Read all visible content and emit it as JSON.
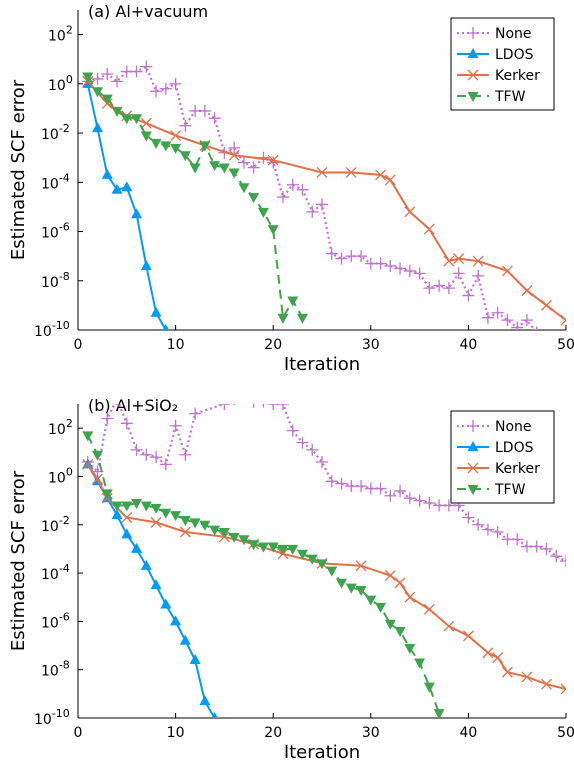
{
  "chart_data": [
    {
      "type": "line",
      "title": "(a) Al+vacuum",
      "xlabel": "Iteration",
      "ylabel": "Estimated SCF error",
      "xlim": [
        0,
        50
      ],
      "ylim_log10": [
        -10,
        3
      ],
      "yscale": "log",
      "x_ticks": [
        "0",
        "10",
        "20",
        "30",
        "40",
        "50"
      ],
      "y_ticks": [
        {
          "base": "10",
          "exp": "2"
        },
        {
          "base": "10",
          "exp": "0"
        },
        {
          "base": "10",
          "exp": "-2"
        },
        {
          "base": "10",
          "exp": "-4"
        },
        {
          "base": "10",
          "exp": "-6"
        },
        {
          "base": "10",
          "exp": "-8"
        },
        {
          "base": "10",
          "exp": "-10"
        }
      ],
      "legend_position": "top-right",
      "series": [
        {
          "name": "None",
          "color": "#c271d2",
          "style": "dotted",
          "marker": "plus",
          "x": [
            1,
            2,
            3,
            4,
            5,
            6,
            7,
            8,
            9,
            10,
            11,
            12,
            13,
            14,
            15,
            16,
            17,
            18,
            19,
            20,
            21,
            22,
            23,
            24,
            25,
            26,
            27,
            28,
            29,
            30,
            31,
            32,
            33,
            34,
            35,
            36,
            37,
            38,
            39,
            40,
            41,
            42,
            43,
            44,
            45,
            46,
            47,
            48
          ],
          "log10_y": [
            0.1,
            0.2,
            0.4,
            0.1,
            0.5,
            0.5,
            0.7,
            -0.3,
            -0.2,
            0.0,
            -1.7,
            -1.1,
            -1.1,
            -1.4,
            -2.8,
            -2.6,
            -3.2,
            -3.4,
            -3.0,
            -3.2,
            -4.6,
            -4.1,
            -4.3,
            -5.2,
            -4.9,
            -6.9,
            -7.1,
            -7.0,
            -7.0,
            -7.3,
            -7.3,
            -7.4,
            -7.5,
            -7.6,
            -7.7,
            -8.3,
            -8.2,
            -8.3,
            -7.7,
            -8.6,
            -7.8,
            -9.5,
            -9.3,
            -9.6,
            -9.9,
            -9.6,
            -10.1,
            -10.4
          ]
        },
        {
          "name": "LDOS",
          "color": "#009af9",
          "style": "solid",
          "marker": "triangle-up",
          "x": [
            1,
            2,
            3,
            4,
            5,
            6,
            7,
            8,
            9
          ],
          "log10_y": [
            0.0,
            -1.8,
            -3.7,
            -4.3,
            -4.2,
            -5.3,
            -7.4,
            -9.3,
            -10.0
          ]
        },
        {
          "name": "Kerker",
          "color": "#e26f46",
          "style": "solid",
          "marker": "x",
          "x": [
            1,
            3,
            5,
            7,
            10,
            13,
            16,
            20,
            25,
            28,
            31,
            32,
            34,
            36,
            38,
            39,
            41,
            44,
            46,
            48,
            50
          ],
          "log10_y": [
            0.1,
            -0.8,
            -1.3,
            -1.6,
            -2.1,
            -2.5,
            -2.9,
            -3.1,
            -3.6,
            -3.6,
            -3.7,
            -3.9,
            -5.2,
            -5.9,
            -7.2,
            -7.1,
            -7.2,
            -7.6,
            -8.4,
            -9.0,
            -9.6
          ]
        },
        {
          "name": "TFW",
          "color": "#3da44d",
          "style": "dashed",
          "marker": "triangle-down",
          "x": [
            1,
            2,
            3,
            4,
            5,
            6,
            7,
            8,
            9,
            10,
            11,
            12,
            13,
            14,
            15,
            16,
            17,
            18,
            19,
            20,
            21,
            22,
            23
          ],
          "log10_y": [
            0.3,
            -0.3,
            -0.6,
            -1.1,
            -1.4,
            -1.4,
            -2.1,
            -2.4,
            -2.5,
            -2.6,
            -2.9,
            -3.4,
            -2.5,
            -3.3,
            -3.4,
            -3.6,
            -4.2,
            -4.6,
            -5.2,
            -5.9,
            -9.5,
            -8.8,
            -9.5
          ]
        }
      ]
    },
    {
      "type": "line",
      "title": "(b) Al+SiO₂",
      "xlabel": "Iteration",
      "ylabel": "Estimated SCF error",
      "xlim": [
        0,
        50
      ],
      "ylim_log10": [
        -10,
        3
      ],
      "yscale": "log",
      "x_ticks": [
        "0",
        "10",
        "20",
        "30",
        "40",
        "50"
      ],
      "y_ticks": [
        {
          "base": "10",
          "exp": "2"
        },
        {
          "base": "10",
          "exp": "0"
        },
        {
          "base": "10",
          "exp": "-2"
        },
        {
          "base": "10",
          "exp": "-4"
        },
        {
          "base": "10",
          "exp": "-6"
        },
        {
          "base": "10",
          "exp": "-8"
        },
        {
          "base": "10",
          "exp": "-10"
        }
      ],
      "legend_position": "top-right",
      "series": [
        {
          "name": "None",
          "color": "#c271d2",
          "style": "dotted",
          "marker": "plus",
          "x": [
            1,
            2,
            3,
            4,
            5,
            6,
            7,
            8,
            9,
            10,
            11,
            12,
            15,
            16,
            17,
            18,
            19,
            20,
            21,
            22,
            23,
            24,
            25,
            26,
            27,
            28,
            29,
            30,
            31,
            32,
            33,
            34,
            35,
            36,
            37,
            38,
            39,
            40,
            41,
            42,
            43,
            44,
            45,
            46,
            47,
            48,
            49,
            50
          ],
          "log10_y": [
            0.6,
            0.2,
            2.4,
            3.2,
            2.2,
            1.1,
            0.9,
            0.8,
            0.5,
            2.1,
            0.9,
            2.6,
            3.0,
            3.2,
            3.5,
            3.1,
            3.1,
            3.0,
            3.0,
            1.9,
            1.4,
            1.1,
            0.6,
            -0.2,
            -0.3,
            -0.4,
            -0.4,
            -0.5,
            -0.5,
            -0.8,
            -0.6,
            -0.9,
            -1.0,
            -1.1,
            -1.2,
            -1.2,
            -1.2,
            -1.7,
            -2.0,
            -2.2,
            -2.3,
            -2.6,
            -2.6,
            -2.9,
            -2.9,
            -3.0,
            -3.3,
            -3.5
          ]
        },
        {
          "name": "LDOS",
          "color": "#009af9",
          "style": "solid",
          "marker": "triangle-up",
          "x": [
            1,
            2,
            3,
            4,
            5,
            6,
            7,
            8,
            9,
            10,
            11,
            12,
            13,
            14
          ],
          "log10_y": [
            0.5,
            -0.2,
            -0.9,
            -1.6,
            -2.4,
            -3.0,
            -3.7,
            -4.5,
            -5.3,
            -6.0,
            -6.8,
            -7.6,
            -9.3,
            -10.0
          ]
        },
        {
          "name": "Kerker",
          "color": "#e26f46",
          "style": "solid",
          "marker": "x",
          "x": [
            1,
            2,
            3,
            5,
            8,
            11,
            15,
            18,
            21,
            25,
            29,
            32,
            33,
            34,
            36,
            38,
            40,
            42,
            43,
            44,
            46,
            48,
            50
          ],
          "log10_y": [
            0.5,
            -0.1,
            -0.9,
            -1.7,
            -1.9,
            -2.3,
            -2.5,
            -2.8,
            -3.2,
            -3.6,
            -3.7,
            -4.1,
            -4.4,
            -5.0,
            -5.5,
            -6.2,
            -6.6,
            -7.3,
            -7.5,
            -8.1,
            -8.3,
            -8.6,
            -8.8
          ]
        },
        {
          "name": "TFW",
          "color": "#3da44d",
          "style": "dashed",
          "marker": "triangle-down",
          "x": [
            1,
            2,
            3,
            4,
            5,
            6,
            7,
            8,
            9,
            10,
            11,
            12,
            13,
            14,
            15,
            16,
            17,
            18,
            19,
            20,
            21,
            22,
            23,
            24,
            25,
            26,
            27,
            28,
            29,
            30,
            31,
            32,
            33,
            34,
            35,
            36,
            37
          ],
          "log10_y": [
            1.7,
            0.9,
            -0.7,
            -1.2,
            -1.2,
            -1.1,
            -1.2,
            -1.3,
            -1.5,
            -1.6,
            -1.8,
            -1.9,
            -2.0,
            -2.2,
            -2.3,
            -2.5,
            -2.6,
            -2.8,
            -2.9,
            -2.9,
            -3.0,
            -3.0,
            -3.2,
            -3.4,
            -3.6,
            -3.9,
            -4.4,
            -4.6,
            -4.7,
            -5.1,
            -5.4,
            -6.1,
            -6.4,
            -7.1,
            -7.7,
            -8.7,
            -9.8
          ]
        }
      ]
    }
  ]
}
